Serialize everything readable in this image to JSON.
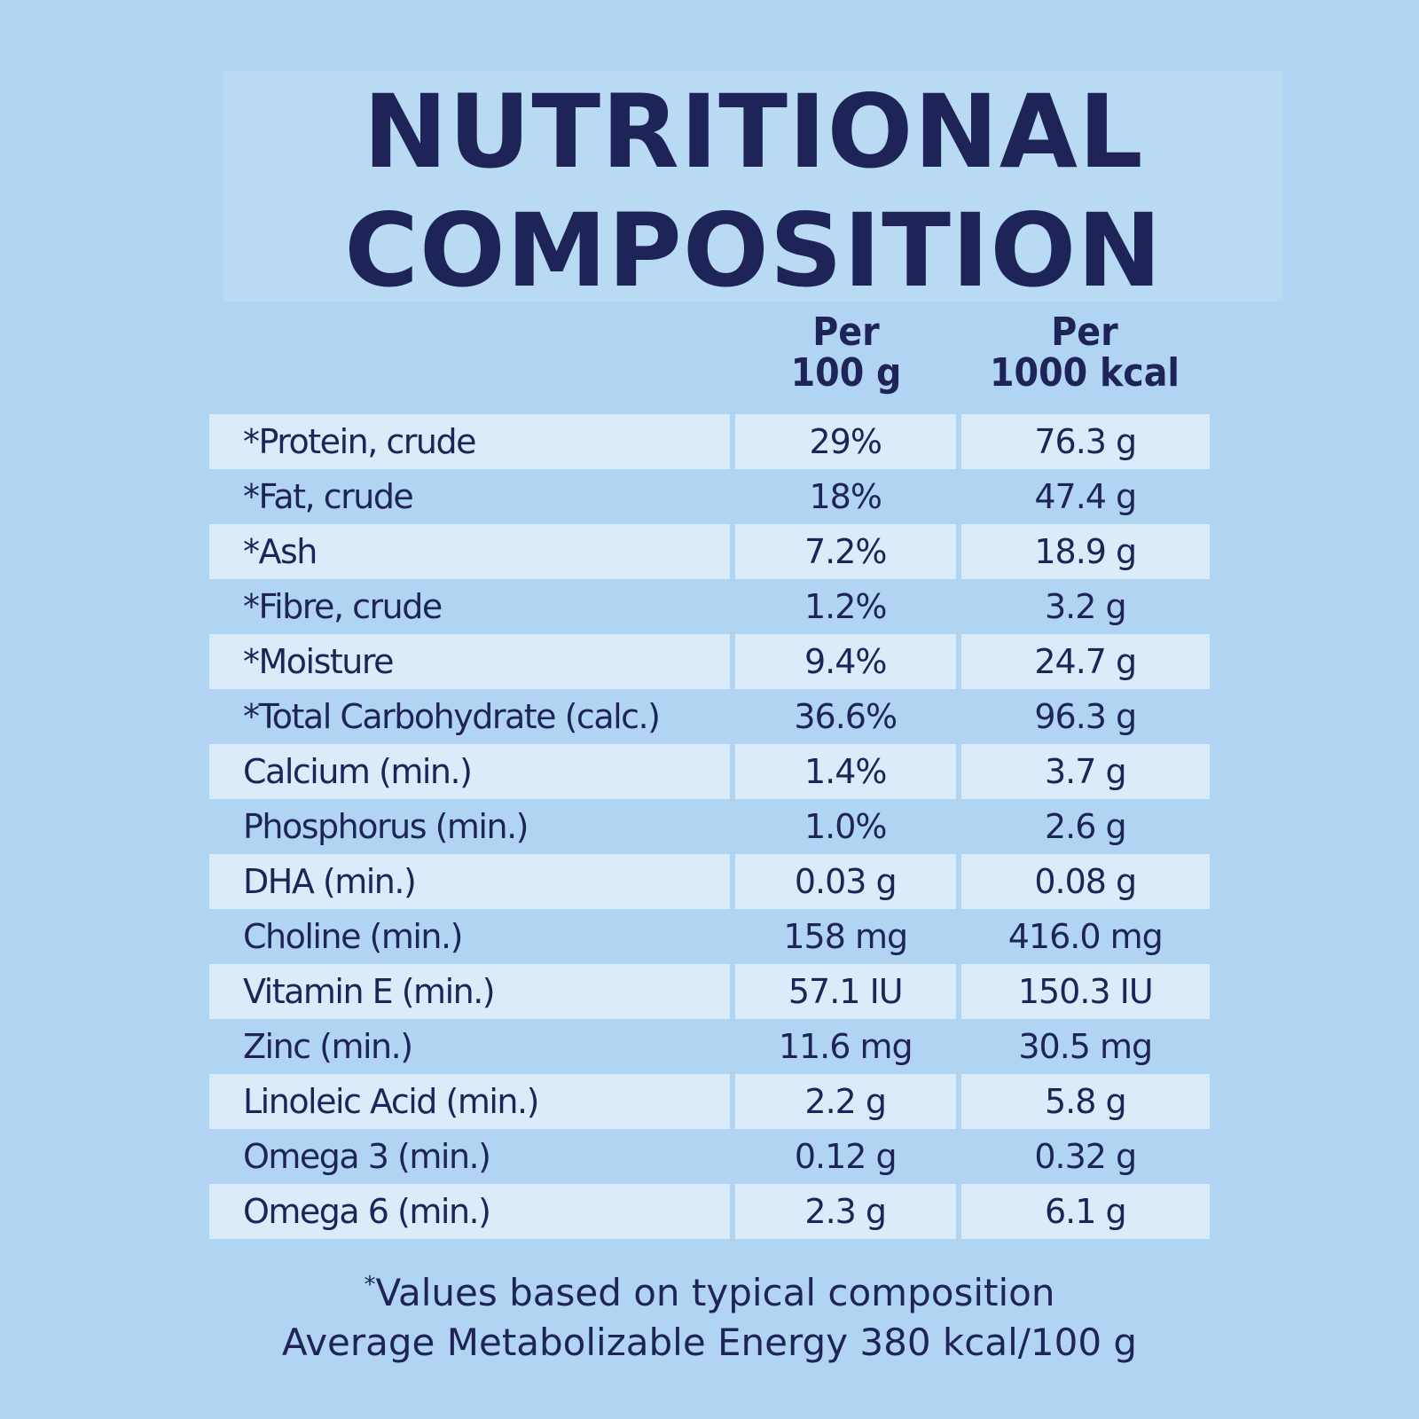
{
  "title": {
    "line1": "NUTRITIONAL",
    "line2": "COMPOSITION"
  },
  "columns": {
    "per100": {
      "line1": "Per",
      "line2": "100 g"
    },
    "per1000": {
      "line1": "Per",
      "line2": "1000 kcal"
    }
  },
  "rows": [
    {
      "name": "*Protein, crude",
      "per100": "29%",
      "per1000": "76.3 g"
    },
    {
      "name": "*Fat, crude",
      "per100": "18%",
      "per1000": "47.4 g"
    },
    {
      "name": "*Ash",
      "per100": "7.2%",
      "per1000": "18.9 g"
    },
    {
      "name": "*Fibre, crude",
      "per100": "1.2%",
      "per1000": "3.2 g"
    },
    {
      "name": "*Moisture",
      "per100": "9.4%",
      "per1000": "24.7 g"
    },
    {
      "name": "*Total Carbohydrate (calc.)",
      "per100": "36.6%",
      "per1000": "96.3 g"
    },
    {
      "name": "Calcium (min.)",
      "per100": "1.4%",
      "per1000": "3.7 g"
    },
    {
      "name": "Phosphorus (min.)",
      "per100": "1.0%",
      "per1000": "2.6 g"
    },
    {
      "name": "DHA (min.)",
      "per100": "0.03 g",
      "per1000": "0.08 g"
    },
    {
      "name": "Choline (min.)",
      "per100": "158 mg",
      "per1000": "416.0 mg"
    },
    {
      "name": "Vitamin E (min.)",
      "per100": "57.1 IU",
      "per1000": "150.3 IU"
    },
    {
      "name": "Zinc (min.)",
      "per100": "11.6 mg",
      "per1000": "30.5 mg"
    },
    {
      "name": "Linoleic Acid (min.)",
      "per100": "2.2 g",
      "per1000": "5.8 g"
    },
    {
      "name": "Omega 3 (min.)",
      "per100": "0.12 g",
      "per1000": "0.32 g"
    },
    {
      "name": "Omega 6 (min.)",
      "per100": "2.3 g",
      "per1000": "6.1 g"
    }
  ],
  "footnote": {
    "asterisk": "*",
    "line1": "Values based on typical composition",
    "line2": "Average Metabolizable Energy 380 kcal/100 g"
  },
  "colors": {
    "background": "#b0d4f1",
    "shaded_row": "#daebfa",
    "text": "#1e2458"
  }
}
